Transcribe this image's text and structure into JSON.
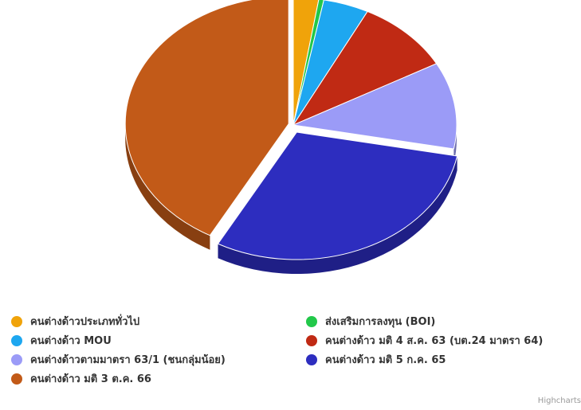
{
  "chart_data": {
    "type": "pie",
    "title": "",
    "series": [
      {
        "name": "คนต่างด้าวประเภททั่วไป",
        "value": 2.5,
        "color": "#f0a30a"
      },
      {
        "name": "ส่งเสริมการลงทุน (BOI)",
        "value": 0.5,
        "color": "#22c84a"
      },
      {
        "name": "คนต่างด้าว MOU",
        "value": 4.5,
        "color": "#1ea7f0"
      },
      {
        "name": "คนต่างด้าว มติ 4 ส.ค. 63 (บต.24 มาตรา 64)",
        "value": 9.5,
        "color": "#c02a14"
      },
      {
        "name": "คนต่างด้าวตามมาตรา 63/1 (ชนกลุ่มน้อย)",
        "value": 11.0,
        "color": "#9b9bf7"
      },
      {
        "name": "คนต่างด้าว มติ 5 ก.ค. 65",
        "value": 30.0,
        "color": "#2d2dbf"
      },
      {
        "name": "คนต่างด้าว มติ 3 ต.ค. 66",
        "value": 42.0,
        "color": "#c25a18"
      }
    ],
    "legend_placement": "bottom",
    "credits": "Highcharts"
  }
}
